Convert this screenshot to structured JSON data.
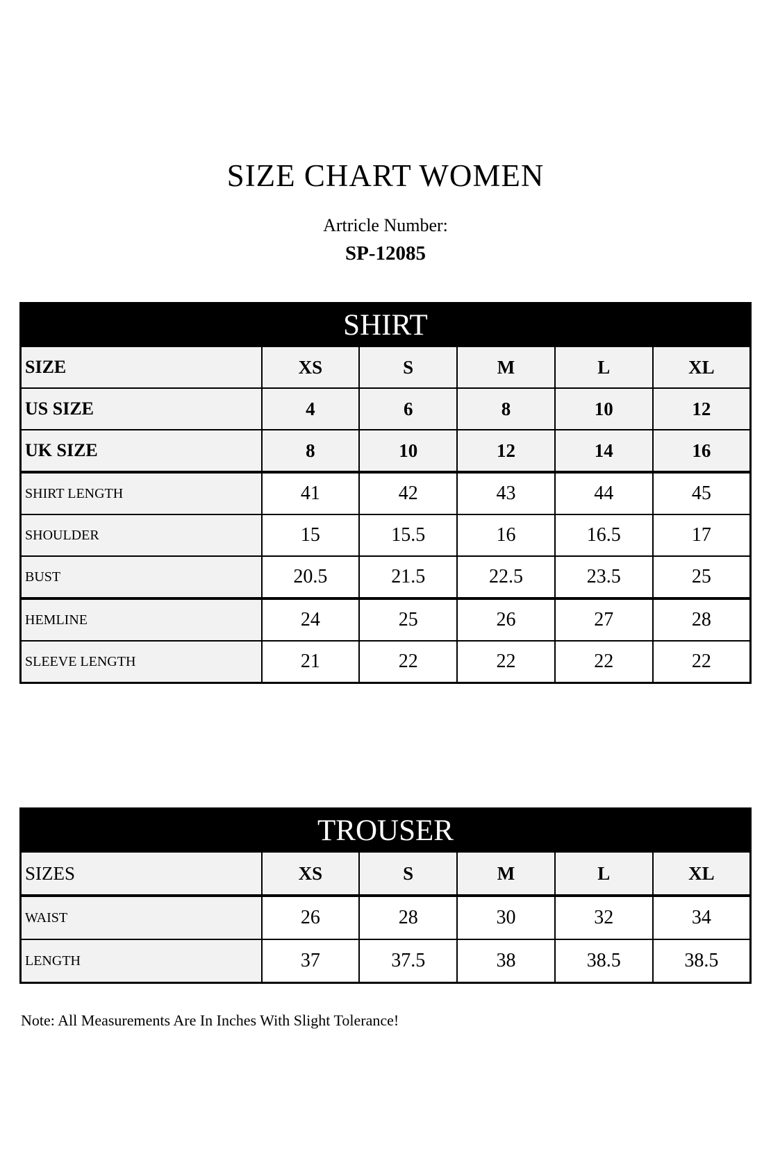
{
  "page": {
    "title": "SIZE CHART WOMEN",
    "article_label": "Artricle Number:",
    "article_number": "SP-12085",
    "note": "Note: All Measurements Are In Inches With Slight Tolerance!"
  },
  "colors": {
    "table_header_bg": "#000000",
    "table_header_text": "#ffffff",
    "shaded_cell_bg": "#f2f2f2",
    "border": "#000000",
    "page_bg": "#ffffff"
  },
  "shirt": {
    "header": "SHIRT",
    "rows": [
      {
        "label": "SIZE",
        "values": [
          "XS",
          "S",
          "M",
          "L",
          "XL"
        ]
      },
      {
        "label": "US SIZE",
        "values": [
          "4",
          "6",
          "8",
          "10",
          "12"
        ]
      },
      {
        "label": "UK SIZE",
        "values": [
          "8",
          "10",
          "12",
          "14",
          "16"
        ]
      },
      {
        "label": "SHIRT LENGTH",
        "values": [
          "41",
          "42",
          "43",
          "44",
          "45"
        ]
      },
      {
        "label": "SHOULDER",
        "values": [
          "15",
          "15.5",
          "16",
          "16.5",
          "17"
        ]
      },
      {
        "label": "BUST",
        "values": [
          "20.5",
          "21.5",
          "22.5",
          "23.5",
          "25"
        ]
      },
      {
        "label": "HEMLINE",
        "values": [
          "24",
          "25",
          "26",
          "27",
          "28"
        ]
      },
      {
        "label": "SLEEVE LENGTH",
        "values": [
          "21",
          "22",
          "22",
          "22",
          "22"
        ]
      }
    ]
  },
  "trouser": {
    "header": "TROUSER",
    "rows": [
      {
        "label": "SIZES",
        "values": [
          "XS",
          "S",
          "M",
          "L",
          "XL"
        ]
      },
      {
        "label": "WAIST",
        "values": [
          "26",
          "28",
          "30",
          "32",
          "34"
        ]
      },
      {
        "label": "LENGTH",
        "values": [
          "37",
          "37.5",
          "38",
          "38.5",
          "38.5"
        ]
      }
    ]
  }
}
